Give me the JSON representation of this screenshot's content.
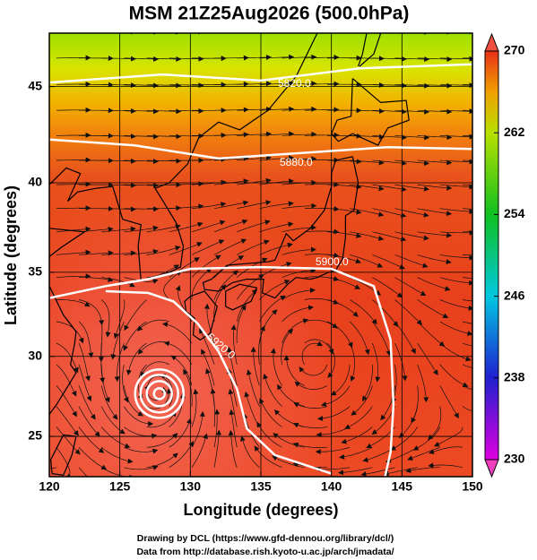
{
  "chart_data": {
    "type": "map",
    "title": "MSM 21Z25Aug2026 (500.0hPa)",
    "x_label": "Longitude (degrees)",
    "y_label": "Latitude  (degrees)",
    "xlim": [
      120,
      150
    ],
    "ylim": [
      22.4,
      47.6
    ],
    "xticks": [
      120,
      125,
      130,
      135,
      140,
      145,
      150
    ],
    "yticks": [
      25,
      30,
      35,
      40,
      45
    ],
    "grid": true,
    "colorbar": {
      "lim": [
        230,
        270
      ],
      "ticks": [
        230,
        238,
        246,
        254,
        262,
        270
      ]
    },
    "contour_labels": [
      "5820.0",
      "5880.0",
      "5900.0",
      "5920.0"
    ]
  },
  "credits": [
    "Drawing by DCL (https://www.gfd-dennou.org/library/dcl/)",
    "Data from http://database.rish.kyoto-u.ac.jp/arch/jmadata/"
  ]
}
